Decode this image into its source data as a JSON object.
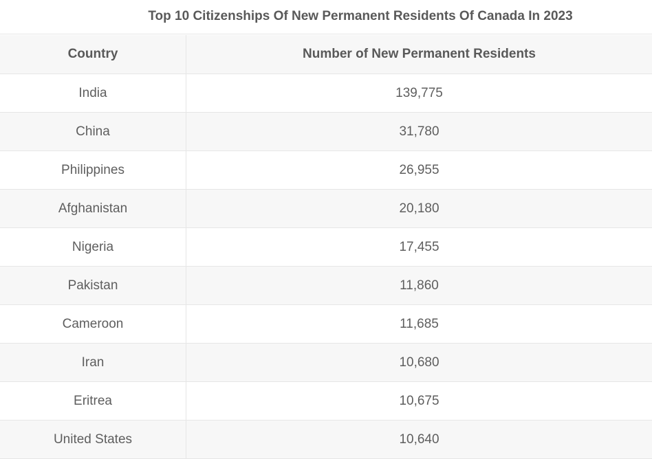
{
  "chart_data": {
    "type": "table",
    "title": "Top 10 Citizenships Of New Permanent Residents Of Canada In 2023",
    "columns": [
      "Country",
      "Number of New Permanent Residents"
    ],
    "rows": [
      {
        "country": "India",
        "value": "139,775"
      },
      {
        "country": "China",
        "value": "31,780"
      },
      {
        "country": "Philippines",
        "value": "26,955"
      },
      {
        "country": "Afghanistan",
        "value": "20,180"
      },
      {
        "country": "Nigeria",
        "value": "17,455"
      },
      {
        "country": "Pakistan",
        "value": "11,860"
      },
      {
        "country": "Cameroon",
        "value": "11,685"
      },
      {
        "country": "Iran",
        "value": "10,680"
      },
      {
        "country": "Eritrea",
        "value": "10,675"
      },
      {
        "country": "United States",
        "value": "10,640"
      }
    ]
  }
}
